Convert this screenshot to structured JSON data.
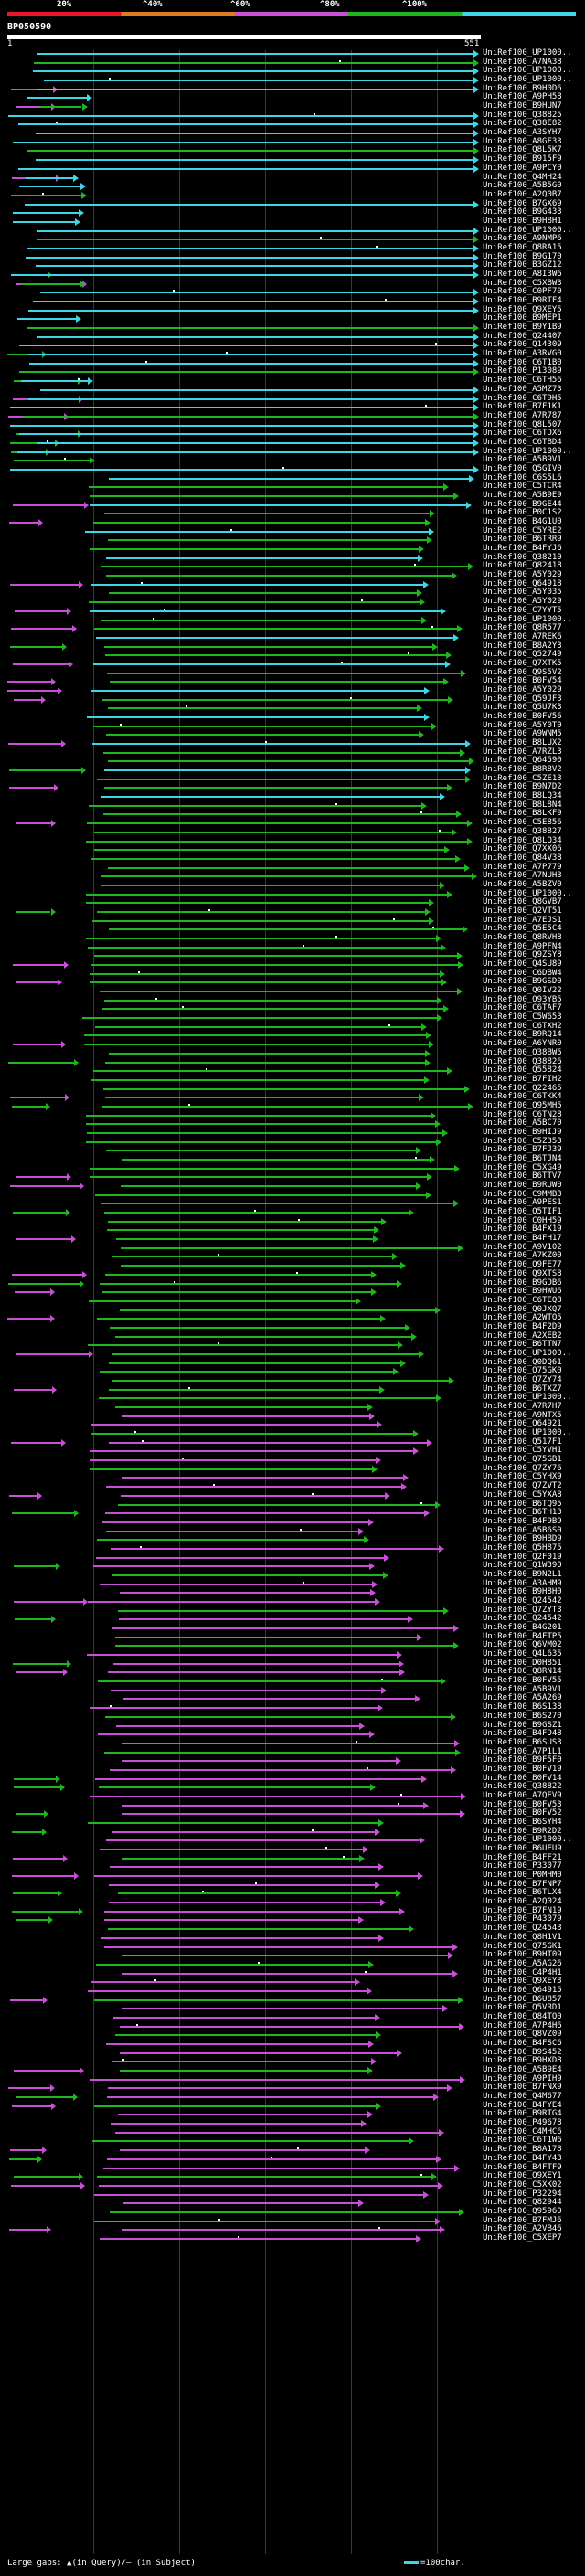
{
  "query": {
    "id": "BP050590",
    "start": "1",
    "end": "551"
  },
  "colors": {
    "red": "#e8152b",
    "orange": "#e07a1e",
    "magenta": "#c84fd6",
    "green": "#1fb51f",
    "cyan": "#3dd6e6"
  },
  "scale": [
    {
      "label": "20%",
      "color": "#e8152b"
    },
    {
      "label": "^40%",
      "color": "#e07a1e"
    },
    {
      "label": "^60%",
      "color": "#c84fd6"
    },
    {
      "label": "^80%",
      "color": "#1fb51f"
    },
    {
      "label": "^100%",
      "color": "#3dd6e6"
    }
  ],
  "legend": {
    "gaps": "Large gaps: ▲(in Query)/– (in Subject)",
    "scale": "=100char."
  },
  "hit_labels": [
    "UniRef100_UP1000..",
    "UniRef100_A7NA38",
    "UniRef100_UP1000..",
    "UniRef100_UP1000..",
    "UniRef100_B9H0D6",
    "UniRef100_A9PH58",
    "UniRef100_B9HUN7",
    "UniRef100_Q38825",
    "UniRef100_Q38E82",
    "UniRef100_A3SYH7",
    "UniRef100_A8GF33",
    "UniRef100_Q8L5K7",
    "UniRef100_B915F9",
    "UniRef100_A9PCY0",
    "UniRef100_Q4MH24",
    "UniRef100_A5B5G0",
    "UniRef100_A2Q0B7",
    "UniRef100_B7GX69",
    "UniRef100_B9G433",
    "UniRef100_B9H8H1",
    "UniRef100_UP1000..",
    "UniRef100_A9NMP6",
    "UniRef100_Q8RA15",
    "UniRef100_B9G170",
    "UniRef100_B3GZ12",
    "UniRef100_A8I3W6",
    "UniRef100_C5XBW3",
    "UniRef100_C0PF70",
    "UniRef100_B9RTF4",
    "UniRef100_Q9XEY5",
    "UniRef100_B9MEP1",
    "UniRef100_B9Y1B9",
    "UniRef100_Q24407",
    "UniRef100_Q14309",
    "UniRef100_A3RVG0",
    "UniRef100_C6T1B0",
    "UniRef100_P13089",
    "UniRef100_C6TH56",
    "UniRef100_A5MZ73",
    "UniRef100_C6T9H5",
    "UniRef100_B7F1K1",
    "UniRef100_A7R787",
    "UniRef100_Q8L507",
    "UniRef100_C6TDX6",
    "UniRef100_C6TBD4",
    "UniRef100_UP1000..",
    "UniRef100_A5B9V1",
    "UniRef100_Q5GIV0",
    "UniRef100_C6S5L6",
    "UniRef100_C5TCR4",
    "UniRef100_A5B9E9",
    "UniRef100_B9GE44",
    "UniRef100_P0C1S2",
    "UniRef100_B4G1U0",
    "UniRef100_C5YRE2",
    "UniRef100_B6TRR9",
    "UniRef100_B4FYJ6",
    "UniRef100_Q38210",
    "UniRef100_Q82418",
    "UniRef100_A5Y029",
    "UniRef100_Q64918",
    "UniRef100_A5Y035",
    "UniRef100_A5Y029",
    "UniRef100_C7YYT5",
    "UniRef100_UP1000..",
    "UniRef100_Q8R577",
    "UniRef100_A7REK6",
    "UniRef100_B8A2Y3",
    "UniRef100_Q52749",
    "UniRef100_Q7XTK5",
    "UniRef100_Q9S5V2",
    "UniRef100_B0FV54",
    "UniRef100_A5Y029",
    "UniRef100_Q59JF3",
    "UniRef100_Q5U7K3",
    "UniRef100_B0FV56",
    "UniRef100_A5Y0T0",
    "UniRef100_A9WNM5",
    "UniRef100_B8LUX2",
    "UniRef100_A7RZL3",
    "UniRef100_Q64590",
    "UniRef100_B8R8V2",
    "UniRef100_C5ZE13",
    "UniRef100_B9N7D2",
    "UniRef100_B8LQ34",
    "UniRef100_B8L8N4",
    "UniRef100_B8LKF9",
    "UniRef100_C5E856",
    "UniRef100_Q38827",
    "UniRef100_Q8LQ34",
    "UniRef100_Q7XX06",
    "UniRef100_Q84V38",
    "UniRef100_A7P779",
    "UniRef100_A7NUH3",
    "UniRef100_A5BZV0",
    "UniRef100_UP1000..",
    "UniRef100_Q8GVB7",
    "UniRef100_Q2VT51",
    "UniRef100_A7EJS1",
    "UniRef100_Q5E5C4",
    "UniRef100_Q8RVH8",
    "UniRef100_A9PFN4",
    "UniRef100_Q9ZSY8",
    "UniRef100_Q4SU89",
    "UniRef100_C6DBW4",
    "UniRef100_B9GSD0",
    "UniRef100_Q0IV22",
    "UniRef100_Q93YB5",
    "UniRef100_C6TAF7",
    "UniRef100_C5W653",
    "UniRef100_C6TXH2",
    "UniRef100_B9RQ14",
    "UniRef100_A6YNR0",
    "UniRef100_Q38BW5",
    "UniRef100_Q38826",
    "UniRef100_Q55824",
    "UniRef100_B7FIH2",
    "UniRef100_Q22465",
    "UniRef100_C6TKK4",
    "UniRef100_Q95MH5",
    "UniRef100_C6TN28",
    "UniRef100_A5BC70",
    "UniRef100_B9HIJ9",
    "UniRef100_C5Z353",
    "UniRef100_B7FJ39",
    "UniRef100_B6TJN4",
    "UniRef100_C5XG49",
    "UniRef100_B6TTV7",
    "UniRef100_B9RUW0",
    "UniRef100_C9MMB3",
    "UniRef100_A9PES1",
    "UniRef100_Q5TIF1",
    "UniRef100_C0HH59",
    "UniRef100_B4FX19",
    "UniRef100_B4FH17",
    "UniRef100_A9V102",
    "UniRef100_A7KZ00",
    "UniRef100_Q9FE77",
    "UniRef100_Q9XTS8",
    "UniRef100_B9GDB6",
    "UniRef100_B9HWU6",
    "UniRef100_C6TEQ8",
    "UniRef100_Q0JXQ7",
    "UniRef100_A2WTQ5",
    "UniRef100_B4F2D9",
    "UniRef100_A2XEB2",
    "UniRef100_B6TTN7",
    "UniRef100_UP1000..",
    "UniRef100_Q0DQ61",
    "UniRef100_Q75GK0",
    "UniRef100_Q7ZY74",
    "UniRef100_B6TXZ7",
    "UniRef100_UP1000..",
    "UniRef100_A7R7H7",
    "UniRef100_A9NTX5",
    "UniRef100_Q64921",
    "UniRef100_UP1000..",
    "UniRef100_Q517F1",
    "UniRef100_C5YVH1",
    "UniRef100_Q75GB1",
    "UniRef100_Q7ZY76",
    "UniRef100_C5YHX9",
    "UniRef100_Q7ZVT2",
    "UniRef100_C5YXA8",
    "UniRef100_B6TQ95",
    "UniRef100_B6TH13",
    "UniRef100_B4F9B9",
    "UniRef100_A5B6S0",
    "UniRef100_B9HBD9",
    "UniRef100_Q5H875",
    "UniRef100_Q2F019",
    "UniRef100_Q1W390",
    "UniRef100_B9N2L1",
    "UniRef100_A3AHM9",
    "UniRef100_B9H8H0",
    "UniRef100_Q24542",
    "UniRef100_Q7ZYT3",
    "UniRef100_Q24542",
    "UniRef100_B4G201",
    "UniRef100_B4FTP5",
    "UniRef100_Q6VM02",
    "UniRef100_Q4L635",
    "UniRef100_D0H851",
    "UniRef100_Q8RN14",
    "UniRef100_B0FV55",
    "UniRef100_A5B9V1",
    "UniRef100_A5A269",
    "UniRef100_B6S138",
    "UniRef100_B6S270",
    "UniRef100_B9GSZ1",
    "UniRef100_B4FD48",
    "UniRef100_B6SUS3",
    "UniRef100_A7P1L1",
    "UniRef100_B9F5F0",
    "UniRef100_B0FV19",
    "UniRef100_B0FV14",
    "UniRef100_Q38822",
    "UniRef100_A7QEV9",
    "UniRef100_B0FV53",
    "UniRef100_B0FV52",
    "UniRef100_B6SYH4",
    "UniRef100_B9R2D2",
    "UniRef100_UP1000..",
    "UniRef100_B6UEU9",
    "UniRef100_B4FF21",
    "UniRef100_P33077",
    "UniRef100_P0MHM0",
    "UniRef100_B7FNP7",
    "UniRef100_B6TLX4",
    "UniRef100_A2Q024",
    "UniRef100_B7FN19",
    "UniRef100_P43079",
    "UniRef100_Q24543",
    "UniRef100_Q8H1V1",
    "UniRef100_Q75GK1",
    "UniRef100_B9HT09",
    "UniRef100_A5AG26",
    "UniRef100_C4P4H1",
    "UniRef100_Q9XEY3",
    "UniRef100_Q64915",
    "UniRef100_B6U857",
    "UniRef100_Q5VRD1",
    "UniRef100_Q84TQ0",
    "UniRef100_A7P4H6",
    "UniRef100_Q8VZ09",
    "UniRef100_B4FSC6",
    "UniRef100_B9S452",
    "UniRef100_B9HXD8",
    "UniRef100_A5B9E4",
    "UniRef100_A9PIH9",
    "UniRef100_B7FNX9",
    "UniRef100_Q4M677",
    "UniRef100_B4FYE4",
    "UniRef100_B9RTG4",
    "UniRef100_P49678",
    "UniRef100_C4MHC6",
    "UniRef100_C6T1W6",
    "UniRef100_B8A178",
    "UniRef100_B4FY43",
    "UniRef100_B4FTF9",
    "UniRef100_Q9XEY1",
    "UniRef100_C5XK02",
    "UniRef100_P32294",
    "UniRef100_Q82944",
    "UniRef100_Q95960",
    "UniRef100_B7FMJ6",
    "UniRef100_A2VB46",
    "UniRef100_C5XEP7"
  ],
  "hits_seed": 42,
  "hits_count": 276
}
